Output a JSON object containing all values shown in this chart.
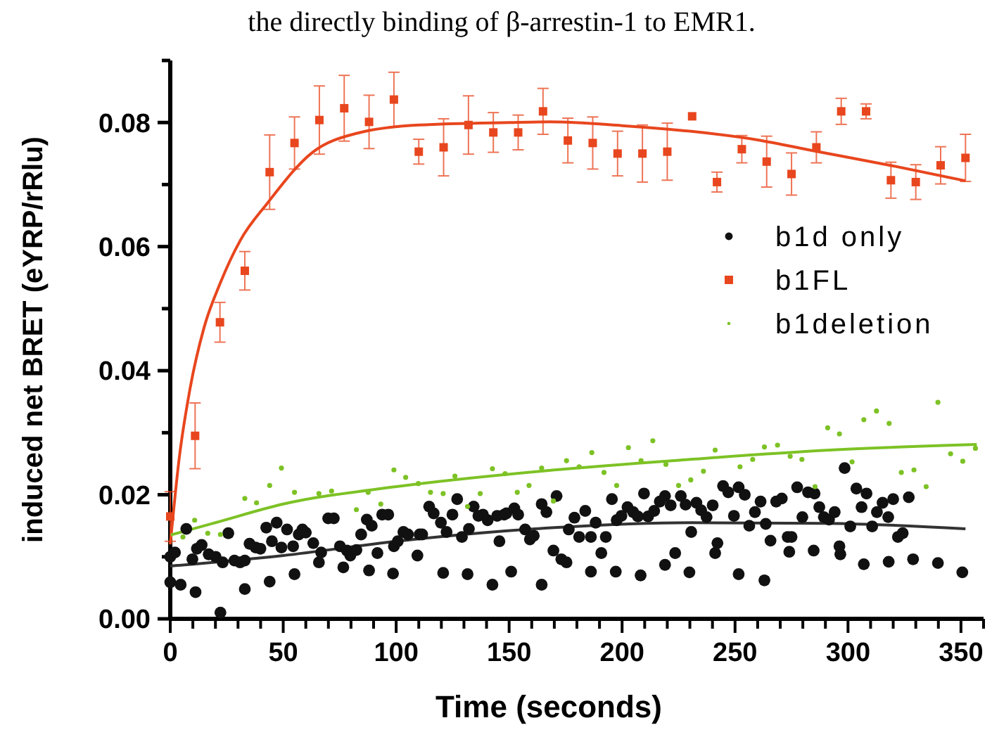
{
  "chart_data": {
    "type": "scatter",
    "annotations": [
      "the directly binding of β-arrestin-1 to EMR1."
    ],
    "xlabel": "Time (seconds)",
    "ylabel": "induced net BRET (eYRP/rRlu)",
    "xlim": [
      0,
      360
    ],
    "ylim": [
      0,
      0.09
    ],
    "xticks": [
      0,
      {
        "value": 10,
        "label": null
      },
      {
        "value": 20,
        "label": null
      },
      {
        "value": 30,
        "label": null
      },
      {
        "value": 40,
        "label": null
      },
      50,
      {
        "value": 60,
        "label": null
      },
      {
        "value": 70,
        "label": null
      },
      {
        "value": 80,
        "label": null
      },
      {
        "value": 90,
        "label": null
      },
      100,
      {
        "value": 110,
        "label": null
      },
      {
        "value": 120,
        "label": null
      },
      {
        "value": 130,
        "label": null
      },
      {
        "value": 140,
        "label": null
      },
      150,
      {
        "value": 160,
        "label": null
      },
      {
        "value": 170,
        "label": null
      },
      {
        "value": 180,
        "label": null
      },
      {
        "value": 190,
        "label": null
      },
      200,
      {
        "value": 210,
        "label": null
      },
      {
        "value": 220,
        "label": null
      },
      {
        "value": 230,
        "label": null
      },
      {
        "value": 240,
        "label": null
      },
      250,
      {
        "value": 260,
        "label": null
      },
      {
        "value": 270,
        "label": null
      },
      {
        "value": 280,
        "label": null
      },
      {
        "value": 290,
        "label": null
      },
      300,
      {
        "value": 310,
        "label": null
      },
      {
        "value": 320,
        "label": null
      },
      {
        "value": 330,
        "label": null
      },
      {
        "value": 340,
        "label": null
      },
      350,
      {
        "value": 360,
        "label": null
      }
    ],
    "yticks": [
      {
        "value": 0,
        "label": "0.00"
      },
      {
        "value": 0.01,
        "label": null
      },
      {
        "value": 0.02,
        "label": "0.02"
      },
      {
        "value": 0.03,
        "label": null
      },
      {
        "value": 0.04,
        "label": "0.04"
      },
      {
        "value": 0.05,
        "label": null
      },
      {
        "value": 0.06,
        "label": "0.06"
      },
      {
        "value": 0.07,
        "label": null
      },
      {
        "value": 0.08,
        "label": "0.08"
      },
      {
        "value": 0.09,
        "label": null
      }
    ],
    "grid": false,
    "legend": "right",
    "series": [
      {
        "name": "b1d only",
        "marker": "circle",
        "color": "#111111",
        "x": [
          0,
          2.1,
          0,
          4.6,
          7.1,
          9.8,
          11.2,
          11.8,
          13.9,
          17,
          20.1,
          22.2,
          23.2,
          25.7,
          28.4,
          30.9,
          33,
          33,
          35.1,
          37.8,
          39.9,
          42.5,
          44,
          45,
          47.1,
          49.2,
          51.7,
          54.4,
          55,
          56.9,
          58.5,
          60,
          63.3,
          65.8,
          66.8,
          69.9,
          72.4,
          75.1,
          76.6,
          78.2,
          79.7,
          82.4,
          84.5,
          87,
          88,
          89.2,
          91.7,
          93.8,
          96.5,
          98.6,
          99,
          100.7,
          103.2,
          105.2,
          109.4,
          110.4,
          111.5,
          114.6,
          116.6,
          119.8,
          120.8,
          122.3,
          124.9,
          127,
          129.1,
          131.6,
          132.2,
          134.3,
          136.4,
          138.4,
          140.5,
          142.6,
          144.7,
          145.7,
          147.8,
          148.8,
          150.9,
          152.3,
          154,
          157.1,
          159.2,
          160.9,
          164.4,
          164.4,
          166.5,
          169.6,
          171,
          173.1,
          175.4,
          176.4,
          178.9,
          181,
          183.7,
          186.2,
          186.2,
          188.3,
          190.8,
          192.8,
          195.5,
          197.2,
          197.6,
          199.7,
          202.4,
          204.9,
          207,
          208.2,
          209.7,
          211.5,
          214.2,
          216.7,
          219,
          219,
          221.5,
          223.5,
          226,
          228.1,
          229.8,
          230.6,
          232.9,
          235,
          237.4,
          240.1,
          241.2,
          242.2,
          244.7,
          247,
          249.5,
          251.6,
          251.6,
          254.3,
          256.3,
          258.8,
          261.3,
          263,
          263.6,
          265.7,
          268.2,
          270.7,
          273.3,
          274,
          275,
          277.5,
          279.8,
          282.3,
          284.8,
          285.2,
          287.3,
          289.3,
          291.6,
          294.1,
          296.2,
          296.6,
          298.5,
          301,
          303.7,
          306,
          307,
          308.2,
          310.7,
          312.8,
          315.3,
          317.8,
          318,
          320,
          322.1,
          324.2,
          326.9,
          328.8,
          339.8,
          350.6
        ],
        "values": [
          0.01,
          0.0107,
          0.0059,
          0.0055,
          0.0145,
          0.0096,
          0.0043,
          0.0113,
          0.0119,
          0.0104,
          0.01,
          0.001,
          0.0091,
          0.0138,
          0.0094,
          0.0091,
          0.0094,
          0.0048,
          0.0121,
          0.0115,
          0.0113,
          0.0147,
          0.006,
          0.0125,
          0.0155,
          0.0115,
          0.0144,
          0.0117,
          0.0072,
          0.0136,
          0.0144,
          0.0139,
          0.0122,
          0.0091,
          0.0107,
          0.0162,
          0.0162,
          0.0117,
          0.0083,
          0.011,
          0.0102,
          0.0111,
          0.0136,
          0.016,
          0.0078,
          0.015,
          0.0106,
          0.0168,
          0.0168,
          0.0073,
          0.0117,
          0.0125,
          0.014,
          0.0136,
          0.0102,
          0.0136,
          0.0136,
          0.0181,
          0.017,
          0.0155,
          0.0074,
          0.014,
          0.0168,
          0.0193,
          0.0132,
          0.0072,
          0.0145,
          0.0181,
          0.0166,
          0.0168,
          0.0159,
          0.0055,
          0.0166,
          0.0125,
          0.0168,
          0.017,
          0.0076,
          0.0178,
          0.0168,
          0.0144,
          0.0128,
          0.0134,
          0.0185,
          0.0055,
          0.0172,
          0.011,
          0.0198,
          0.0096,
          0.0091,
          0.0144,
          0.0163,
          0.0132,
          0.0174,
          0.0076,
          0.0132,
          0.0155,
          0.0106,
          0.0132,
          0.0193,
          0.0076,
          0.0159,
          0.0166,
          0.018,
          0.0172,
          0.0165,
          0.007,
          0.0202,
          0.0165,
          0.0174,
          0.0189,
          0.0087,
          0.0198,
          0.0183,
          0.0106,
          0.0198,
          0.0184,
          0.0075,
          0.014,
          0.0187,
          0.0175,
          0.0164,
          0.0183,
          0.0106,
          0.0122,
          0.0214,
          0.0204,
          0.0166,
          0.0072,
          0.0212,
          0.02,
          0.015,
          0.0172,
          0.0189,
          0.0062,
          0.0153,
          0.0126,
          0.0189,
          0.0194,
          0.0132,
          0.0108,
          0.0132,
          0.0212,
          0.0164,
          0.0204,
          0.011,
          0.0202,
          0.018,
          0.0164,
          0.016,
          0.0172,
          0.0117,
          0.0104,
          0.0243,
          0.0149,
          0.021,
          0.018,
          0.0088,
          0.0202,
          0.0149,
          0.0172,
          0.0187,
          0.0164,
          0.0092,
          0.0193,
          0.0132,
          0.0138,
          0.0196,
          0.0096,
          0.009,
          0.0075
        ]
      },
      {
        "name": "b1FL",
        "marker": "square",
        "color": "#e8461e",
        "x": [
          0,
          11,
          22,
          33,
          44,
          55,
          66,
          77,
          88,
          99,
          110,
          121,
          132,
          143,
          154,
          165,
          176,
          187,
          198,
          209,
          220,
          231,
          242,
          253,
          264,
          275,
          286,
          297,
          308,
          319,
          330,
          341,
          352
        ],
        "values": [
          0.0165,
          0.0295,
          0.0478,
          0.0561,
          0.072,
          0.0767,
          0.0804,
          0.0823,
          0.0801,
          0.0837,
          0.0753,
          0.076,
          0.0796,
          0.0784,
          0.0784,
          0.0818,
          0.0771,
          0.0767,
          0.075,
          0.075,
          0.0753,
          0.081,
          0.0704,
          0.0757,
          0.0737,
          0.0717,
          0.076,
          0.0818,
          0.0818,
          0.0707,
          0.0704,
          0.0731,
          0.0743
        ],
        "errors": [
          0.004,
          0.0053,
          0.0032,
          0.0031,
          0.006,
          0.0042,
          0.0055,
          0.0053,
          0.0043,
          0.0044,
          0.002,
          0.0046,
          0.0047,
          0.0032,
          0.0028,
          0.0037,
          0.0036,
          0.0042,
          0.0036,
          0.0046,
          0.0046,
          null,
          0.0016,
          0.0022,
          0.0041,
          0.0034,
          0.0025,
          0.0021,
          0.0012,
          0.0029,
          0.0028,
          0.003,
          0.0038
        ]
      },
      {
        "name": "b1deletion",
        "marker": "circle",
        "color": "#7dc225",
        "x": [
          5.6,
          10.8,
          16.6,
          22.2,
          33,
          38.2,
          44,
          49.2,
          55,
          65.8,
          71.4,
          82.4,
          87.6,
          93.2,
          99,
          104.2,
          109.8,
          115.2,
          120.8,
          126,
          131.6,
          137.2,
          142.6,
          148.2,
          153.6,
          158.8,
          164.4,
          169.6,
          175.4,
          181,
          186.6,
          192,
          197.6,
          202.8,
          208.4,
          213.6,
          219.4,
          225,
          230.4,
          236,
          241.2,
          252.2,
          257.8,
          263,
          268.8,
          274.4,
          279.6,
          285.4,
          291,
          296.2,
          301.8,
          307,
          312.6,
          318.2,
          323.6,
          329.2,
          334.6,
          339.8,
          345.4,
          350.8,
          356.4
        ],
        "values": [
          0.0132,
          0.0159,
          0.0138,
          0.0136,
          0.0194,
          0.0187,
          0.0215,
          0.0243,
          0.0204,
          0.0202,
          0.0206,
          0.0176,
          0.0204,
          0.0185,
          0.024,
          0.0228,
          0.0218,
          0.0204,
          0.0202,
          0.023,
          0.0181,
          0.0202,
          0.0242,
          0.0234,
          0.0204,
          0.0215,
          0.0243,
          0.019,
          0.0255,
          0.0245,
          0.0268,
          0.0236,
          0.0215,
          0.0276,
          0.0255,
          0.0287,
          0.0249,
          0.0215,
          0.0224,
          0.0238,
          0.0272,
          0.0245,
          0.0257,
          0.0277,
          0.028,
          0.0262,
          0.0257,
          0.0213,
          0.0308,
          0.0298,
          0.0253,
          0.0321,
          0.0335,
          0.0315,
          0.0236,
          0.024,
          0.0213,
          0.0349,
          0.0266,
          0.0254,
          0.0275
        ]
      },
      {
        "type": "line",
        "marker": "none",
        "color": "#e8461e",
        "x": [
          0,
          4,
          8.7,
          15,
          22,
          31,
          43,
          63,
          83,
          110,
          150,
          168,
          200,
          230,
          260,
          284,
          320,
          352
        ],
        "values": [
          0.012,
          0.026,
          0.037,
          0.047,
          0.054,
          0.061,
          0.067,
          0.0752,
          0.0783,
          0.0796,
          0.08,
          0.0801,
          0.0795,
          0.0786,
          0.0772,
          0.0755,
          0.073,
          0.0706
        ]
      },
      {
        "type": "line",
        "marker": "none",
        "color": "#7dc225",
        "x": [
          0,
          10,
          20,
          50,
          100,
          170,
          230,
          292,
          357
        ],
        "values": [
          0.0135,
          0.0145,
          0.0155,
          0.0185,
          0.0213,
          0.024,
          0.0257,
          0.0272,
          0.0281
        ]
      },
      {
        "type": "line",
        "marker": "none",
        "color": "#333333",
        "x": [
          0,
          50,
          100,
          170,
          230,
          290,
          352
        ],
        "values": [
          0.0085,
          0.0102,
          0.0125,
          0.0147,
          0.0155,
          0.0154,
          0.0145
        ]
      }
    ]
  }
}
